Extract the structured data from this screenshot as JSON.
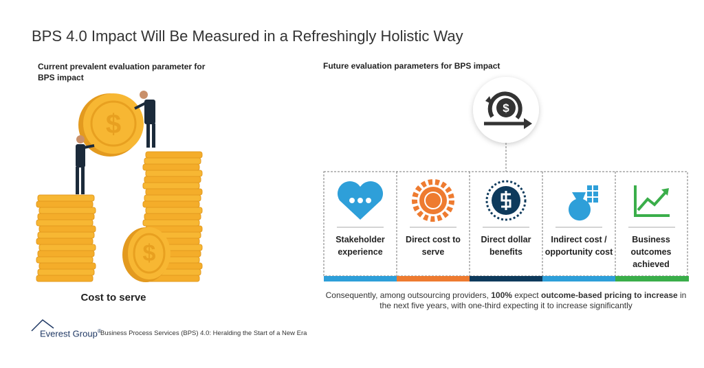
{
  "title": "BPS 4.0 Impact Will Be Measured in a Refreshingly Holistic Way",
  "left": {
    "heading": "Current prevalent evaluation parameter for BPS impact",
    "caption": "Cost to serve"
  },
  "right": {
    "heading": "Future evaluation parameters for BPS impact",
    "cards": [
      "Stakeholder experience",
      "Direct cost to serve",
      "Direct dollar benefits",
      "Indirect cost / opportunity cost",
      "Business outcomes achieved"
    ],
    "note": [
      "Consequently, among outsourcing providers, ",
      "100%",
      " expect ",
      "outcome-based pricing to increase",
      " in the next five years, with one-third expecting it to increase significantly"
    ]
  },
  "footer": {
    "brand": "Everest Group",
    "mark": "®",
    "source": "Business Process Services (BPS) 4.0: Heralding the Start of a New Era"
  }
}
